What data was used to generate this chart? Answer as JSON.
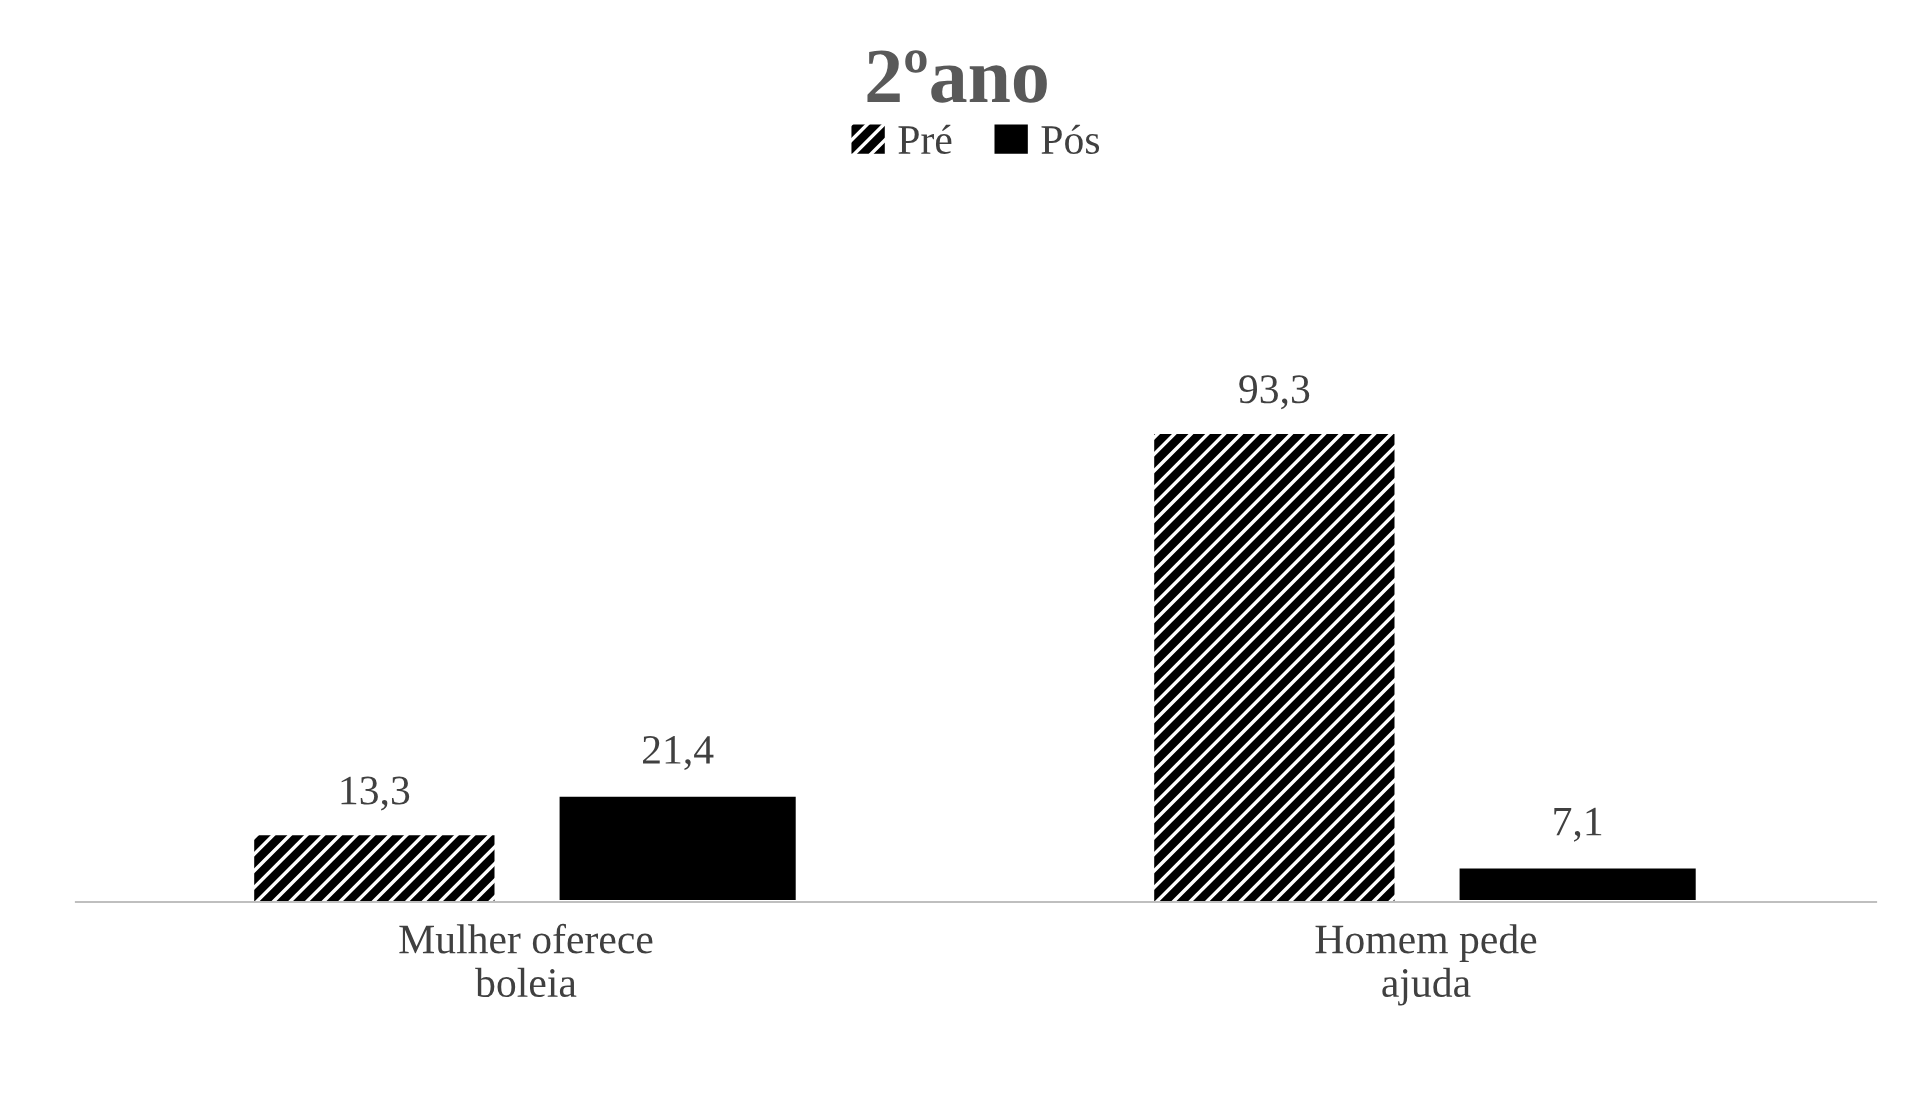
{
  "chart_data": {
    "type": "bar",
    "title": "2ºano",
    "categories": [
      "Mulher oferece\nboleia",
      "Homem pede\najuda"
    ],
    "series": [
      {
        "name": "Pré",
        "color": "#000000",
        "values": [
          13.3,
          93.3
        ],
        "value_labels": [
          "13,3",
          "93,3"
        ]
      },
      {
        "name": "Pós",
        "color": "#000000",
        "values": [
          21.4,
          7.1
        ],
        "value_labels": [
          "21,4",
          "7,1"
        ]
      }
    ],
    "legend": "top",
    "grid": false
  }
}
